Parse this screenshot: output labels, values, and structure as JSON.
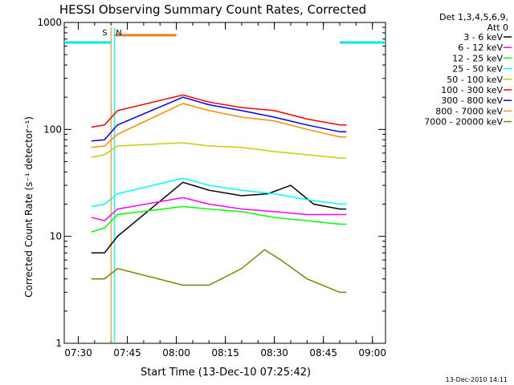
{
  "chart_data": {
    "type": "line",
    "title": "HESSI Observing Summary Count Rates, Corrected",
    "xlabel": "Start Time (13-Dec-10 07:25:42)",
    "ylabel": "Corrected Count Rate (s⁻¹ detector⁻¹)",
    "yscale": "log",
    "ylim": [
      1,
      1000
    ],
    "xlim": [
      "07:25:42",
      "09:04:00"
    ],
    "xticks": [
      "07:30",
      "07:45",
      "08:00",
      "08:15",
      "08:30",
      "08:45",
      "09:00"
    ],
    "yticks": [
      "1",
      "10",
      "100",
      "1000"
    ],
    "legend": {
      "placement": "right",
      "header": [
        "Det 1,3,4,5,6,9,",
        "Att 0"
      ]
    },
    "markers": [
      {
        "label": "S",
        "time": "07:40:00",
        "color": "#e87d1e"
      },
      {
        "label": "N",
        "time": "07:41:00",
        "color": "#00e5ee"
      }
    ],
    "timestamp": "13-Dec-2010 14:11",
    "series": [
      {
        "name": "3 - 6 keV",
        "color": "#000000",
        "x": [
          "07:34",
          "07:38",
          "07:42",
          "08:02",
          "08:10",
          "08:20",
          "08:28",
          "08:35",
          "08:42",
          "08:50",
          "08:52"
        ],
        "y": [
          7,
          7,
          10,
          32,
          27,
          24,
          25,
          30,
          20,
          18,
          18
        ]
      },
      {
        "name": "6 - 12 keV",
        "color": "#ff00ff",
        "x": [
          "07:34",
          "07:38",
          "07:42",
          "08:02",
          "08:10",
          "08:20",
          "08:30",
          "08:40",
          "08:50",
          "08:52"
        ],
        "y": [
          15,
          14,
          18,
          23,
          20,
          18,
          17,
          16,
          16,
          16
        ]
      },
      {
        "name": "12 - 25 keV",
        "color": "#00ff00",
        "x": [
          "07:34",
          "07:38",
          "07:42",
          "08:02",
          "08:10",
          "08:20",
          "08:30",
          "08:40",
          "08:50",
          "08:52"
        ],
        "y": [
          11,
          12,
          16,
          19,
          18,
          17,
          15,
          14,
          13,
          13
        ]
      },
      {
        "name": "25 - 50 keV",
        "color": "#00ffff",
        "x": [
          "07:34",
          "07:38",
          "07:42",
          "08:02",
          "08:10",
          "08:20",
          "08:30",
          "08:40",
          "08:50",
          "08:52"
        ],
        "y": [
          19,
          20,
          25,
          35,
          30,
          27,
          25,
          22,
          20,
          20
        ]
      },
      {
        "name": "50 - 100 keV",
        "color": "#cccc00",
        "x": [
          "07:34",
          "07:38",
          "07:42",
          "08:02",
          "08:10",
          "08:20",
          "08:30",
          "08:40",
          "08:50",
          "08:52"
        ],
        "y": [
          55,
          58,
          70,
          75,
          70,
          68,
          62,
          58,
          54,
          54
        ]
      },
      {
        "name": "100 - 300 keV",
        "color": "#ff0000",
        "x": [
          "07:34",
          "07:38",
          "07:42",
          "08:02",
          "08:10",
          "08:20",
          "08:30",
          "08:40",
          "08:50",
          "08:52"
        ],
        "y": [
          105,
          110,
          150,
          210,
          180,
          160,
          150,
          125,
          110,
          110
        ]
      },
      {
        "name": "300 - 800 keV",
        "color": "#0000ff",
        "x": [
          "07:34",
          "07:38",
          "07:42",
          "08:02",
          "08:10",
          "08:20",
          "08:30",
          "08:40",
          "08:50",
          "08:52"
        ],
        "y": [
          78,
          80,
          110,
          200,
          170,
          150,
          130,
          110,
          95,
          95
        ]
      },
      {
        "name": "800 - 7000 keV",
        "color": "#ff8c00",
        "x": [
          "07:34",
          "07:38",
          "07:42",
          "08:02",
          "08:10",
          "08:20",
          "08:30",
          "08:40",
          "08:50",
          "08:52"
        ],
        "y": [
          68,
          70,
          90,
          175,
          150,
          130,
          120,
          100,
          85,
          85
        ]
      },
      {
        "name": "7000 - 20000 keV",
        "color": "#808000",
        "x": [
          "07:34",
          "07:38",
          "07:42",
          "08:02",
          "08:10",
          "08:20",
          "08:27",
          "08:32",
          "08:40",
          "08:50",
          "08:52"
        ],
        "y": [
          4,
          4,
          5,
          3.5,
          3.5,
          5,
          7.5,
          6,
          4,
          3,
          3
        ]
      }
    ],
    "count_levels": [
      {
        "color": "#00e5ee",
        "segments": [
          [
            "07:25:42",
            "07:40:00",
            650
          ],
          [
            "08:50:00",
            "09:04:00",
            650
          ]
        ]
      },
      {
        "color": "#e87d1e",
        "segments": [
          [
            "07:41:00",
            "08:00:00",
            760
          ]
        ]
      }
    ]
  }
}
